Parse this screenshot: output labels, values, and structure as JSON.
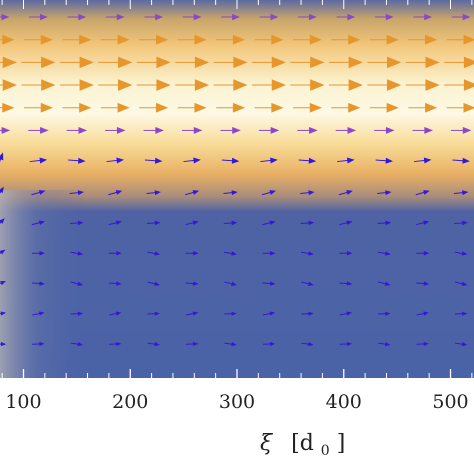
{
  "chart_data": {
    "type": "heatmap",
    "title": "",
    "xlabel": "ξ",
    "xlabel_unit": "[d",
    "xlabel_unit_sub": "0",
    "xlabel_unit_close": "]",
    "ylabel": "",
    "xlim": [
      78,
      522
    ],
    "ylim": [
      0,
      1
    ],
    "x_ticks": [
      100,
      200,
      300,
      400,
      500
    ],
    "x_tick_labels": [
      "100",
      "200",
      "300",
      "400",
      "500"
    ],
    "grid": false,
    "colors": {
      "background": "#4a64a6",
      "band_bright": "#fbf5d4",
      "band_mid": "#f4c672",
      "band_edge": "#e29a4a",
      "arrow_band": "#e6962b",
      "arrow_band_edge": "#8a48c8",
      "arrow_field": "#3418d8"
    },
    "vector_field": {
      "x_positions": [
        78,
        114,
        150,
        186,
        222,
        258,
        294,
        330,
        366,
        402,
        438,
        474,
        510
      ],
      "band_rows": [
        {
          "y": 0.955,
          "mag": 0.55,
          "color_key": "arrow_band_edge"
        },
        {
          "y": 0.895,
          "mag": 0.85,
          "color_key": "arrow_band"
        },
        {
          "y": 0.835,
          "mag": 1.0,
          "color_key": "arrow_band"
        },
        {
          "y": 0.775,
          "mag": 1.0,
          "color_key": "arrow_band"
        },
        {
          "y": 0.715,
          "mag": 0.85,
          "color_key": "arrow_band"
        },
        {
          "y": 0.655,
          "mag": 0.6,
          "color_key": "arrow_band_edge"
        }
      ],
      "field_rows": [
        {
          "y": 0.575,
          "mag": 0.45,
          "angle_deg": 0
        },
        {
          "y": 0.49,
          "mag": 0.35,
          "angle_deg": 10
        },
        {
          "y": 0.41,
          "mag": 0.32,
          "angle_deg": 8
        },
        {
          "y": 0.33,
          "mag": 0.3,
          "angle_deg": -6
        },
        {
          "y": 0.25,
          "mag": 0.3,
          "angle_deg": -10
        },
        {
          "y": 0.17,
          "mag": 0.28,
          "angle_deg": 6
        },
        {
          "y": 0.09,
          "mag": 0.28,
          "angle_deg": -4
        }
      ]
    }
  }
}
